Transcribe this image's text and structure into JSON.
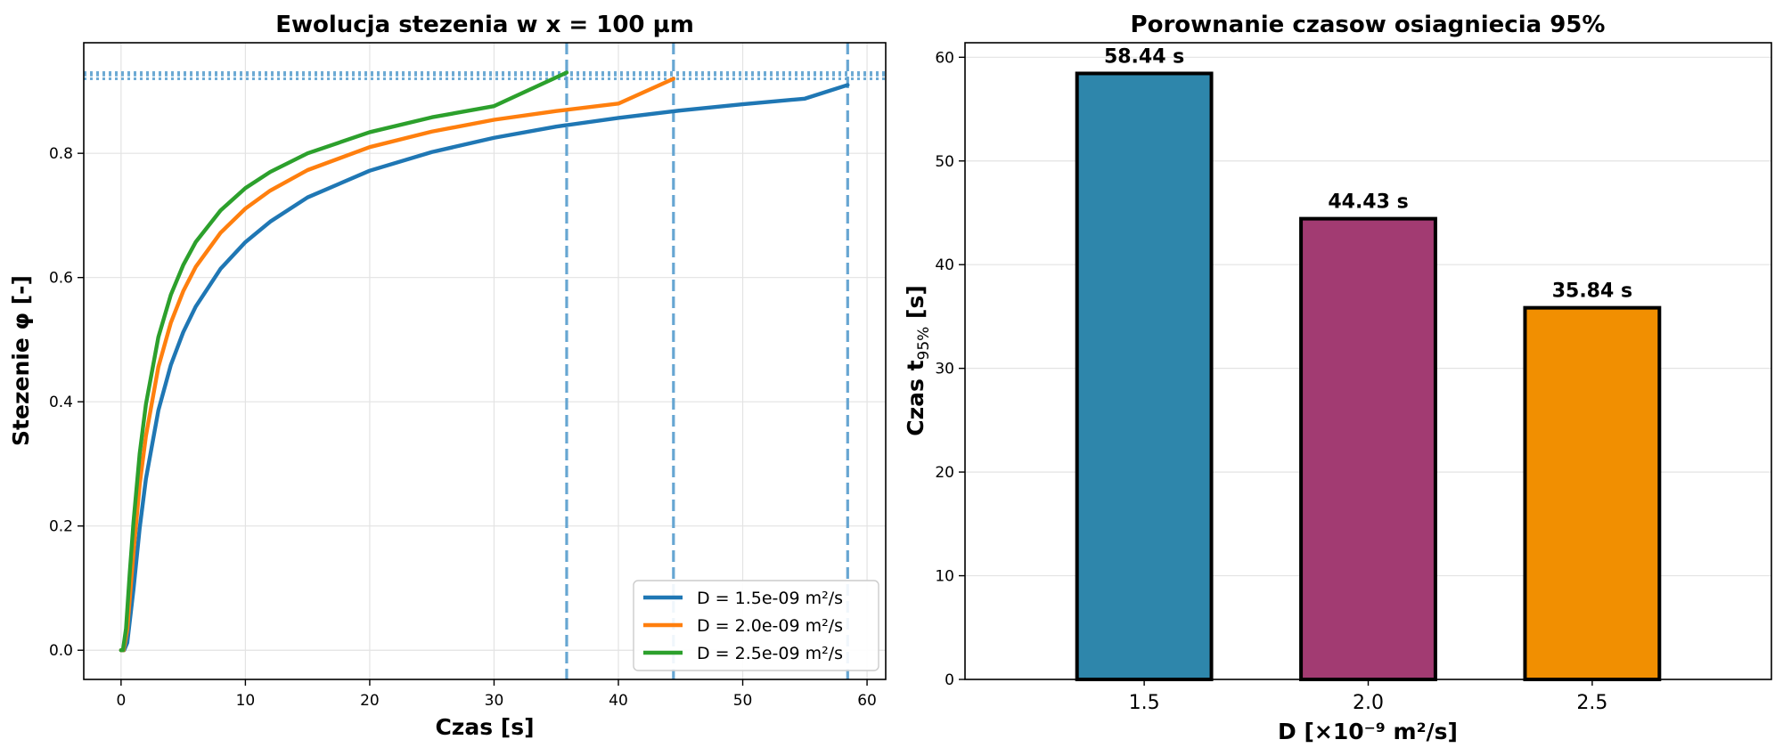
{
  "chart_data": [
    {
      "type": "line",
      "title": "Ewolucja stezenia w x = 100 µm",
      "xlabel": "Czas [s]",
      "ylabel": "Stezenie φ [-]",
      "xlim": [
        -3,
        61.5
      ],
      "ylim": [
        -0.047,
        0.978
      ],
      "xticks": [
        0,
        10,
        20,
        30,
        40,
        50,
        60
      ],
      "xtick_labels": [
        "0",
        "10",
        "20",
        "30",
        "40",
        "50",
        "60"
      ],
      "yticks": [
        0.0,
        0.2,
        0.4,
        0.6,
        0.8
      ],
      "ytick_labels": [
        "0.0",
        "0.2",
        "0.4",
        "0.6",
        "0.8"
      ],
      "grid": true,
      "legend_position": "lower-right",
      "series": [
        {
          "name": "D = 1.5e-09 m²/s",
          "color": "#1f77b4",
          "D": 1.5e-09,
          "t_end": 58.44,
          "x": [
            0,
            0.25,
            0.5,
            1,
            1.5,
            2,
            3,
            4,
            5,
            6,
            8,
            10,
            12,
            15,
            20,
            25,
            30,
            35,
            40,
            45,
            50,
            55,
            58.44
          ],
          "y": [
            0.0,
            0.0,
            0.012,
            0.098,
            0.197,
            0.276,
            0.386,
            0.459,
            0.512,
            0.553,
            0.614,
            0.657,
            0.69,
            0.729,
            0.772,
            0.802,
            0.825,
            0.843,
            0.857,
            0.869,
            0.879,
            0.888,
            0.91
          ]
        },
        {
          "name": "D = 2.0e-09 m²/s",
          "color": "#ff7f0e",
          "D": 2e-09,
          "t_end": 44.43,
          "x": [
            0,
            0.2,
            0.5,
            1,
            1.5,
            2,
            3,
            4,
            5,
            6,
            8,
            10,
            12,
            15,
            20,
            25,
            30,
            35,
            40,
            44.43
          ],
          "y": [
            0.0,
            0.0,
            0.034,
            0.157,
            0.267,
            0.345,
            0.456,
            0.527,
            0.578,
            0.617,
            0.672,
            0.711,
            0.74,
            0.773,
            0.81,
            0.835,
            0.854,
            0.868,
            0.88,
            0.92
          ]
        },
        {
          "name": "D = 2.5e-09 m²/s",
          "color": "#2ca02c",
          "D": 2.5e-09,
          "t_end": 35.84,
          "x": [
            0,
            0.15,
            0.4,
            0.7,
            1,
            1.5,
            2,
            3,
            4,
            5,
            6,
            8,
            10,
            12,
            15,
            20,
            25,
            30,
            35.84
          ],
          "y": [
            0.0,
            0.0,
            0.035,
            0.125,
            0.206,
            0.317,
            0.396,
            0.504,
            0.572,
            0.62,
            0.657,
            0.708,
            0.744,
            0.77,
            0.8,
            0.834,
            0.858,
            0.876,
            0.93
          ]
        }
      ],
      "vlines": {
        "x": [
          35.84,
          44.43,
          58.44
        ],
        "color": "#5fa2d0"
      },
      "hlines": {
        "y": [
          0.92,
          0.926,
          0.93
        ],
        "color": "#5fa2d0"
      }
    },
    {
      "type": "bar",
      "title": "Porownanie czasow osiagniecia 95%",
      "xlabel": "D [×10⁻⁹ m²/s]",
      "ylabel_main": "Czas t",
      "ylabel_sub": "95%",
      "ylabel_tail": " [s]",
      "categories": [
        "1.5",
        "2.0",
        "2.5"
      ],
      "values": [
        58.44,
        44.43,
        35.84
      ],
      "value_labels": [
        "58.44 s",
        "44.43 s",
        "35.84 s"
      ],
      "colors": [
        "#2e86ab",
        "#a23b72",
        "#f18f01"
      ],
      "ylim": [
        0,
        61.4
      ],
      "yticks": [
        0,
        10,
        20,
        30,
        40,
        50,
        60
      ],
      "ytick_labels": [
        "0",
        "10",
        "20",
        "30",
        "40",
        "50",
        "60"
      ],
      "grid": true
    }
  ]
}
